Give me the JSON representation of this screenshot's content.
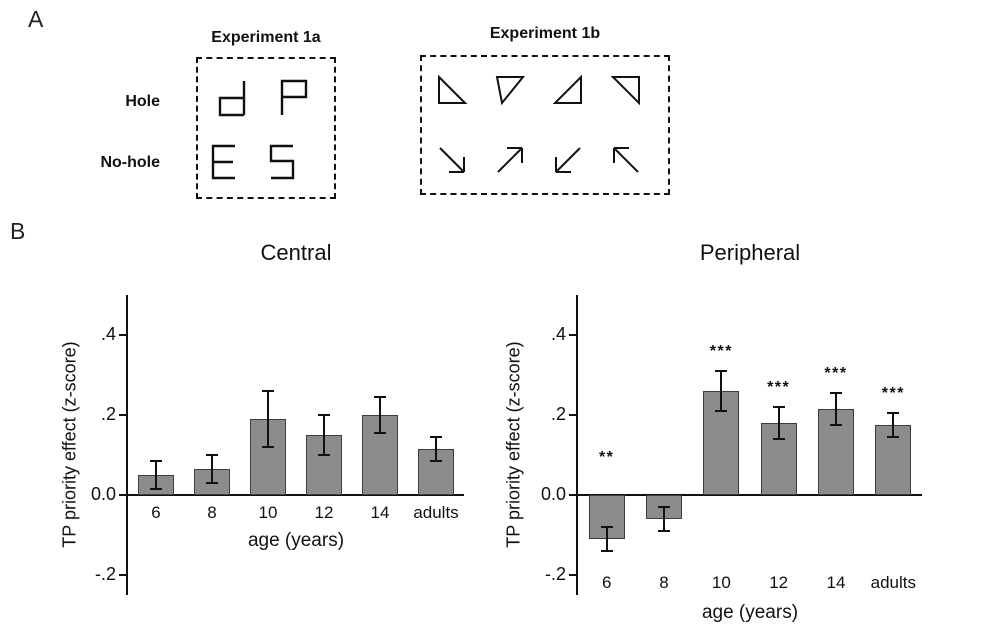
{
  "panel_a": {
    "label": "A",
    "row_labels": [
      "Hole",
      "No-hole"
    ],
    "experiments": [
      {
        "title": "Experiment 1a",
        "hole_shapes": [
          "square-d-glyph",
          "square-p-glyph"
        ],
        "no_hole_shapes": [
          "square-e-glyph",
          "square-5-glyph"
        ]
      },
      {
        "title": "Experiment 1b",
        "hole_shapes": [
          "right-triangle-hypotenuse-top",
          "right-triangle-point-down",
          "right-triangle-right-angle-bottom-right",
          "right-triangle-right-angle-top-right"
        ],
        "no_hole_shapes": [
          "arrow-down-right",
          "arrow-up-right",
          "arrow-down-left",
          "arrow-up-left"
        ]
      }
    ]
  },
  "panel_b": {
    "label": "B"
  },
  "chart_data": [
    {
      "type": "bar",
      "title": "Central",
      "xlabel": "age (years)",
      "ylabel": "TP priority effect (z-score)",
      "categories": [
        "6",
        "8",
        "10",
        "12",
        "14",
        "adults"
      ],
      "values": [
        0.05,
        0.065,
        0.19,
        0.15,
        0.2,
        0.115
      ],
      "errors": [
        0.035,
        0.035,
        0.07,
        0.05,
        0.045,
        0.03
      ],
      "significance": [
        "",
        "",
        "",
        "",
        "",
        ""
      ],
      "yticks": [
        0.4,
        0.2,
        0,
        -0.2
      ],
      "ytick_labels": [
        ".4",
        ".2",
        "0.0",
        "-.2"
      ],
      "ylim": [
        -0.25,
        0.5
      ],
      "grid": false,
      "legend": "none",
      "bar_color": "#8c8c8c",
      "bar_border_color": "#3b3b3b",
      "xtick_position": "below_axis"
    },
    {
      "type": "bar",
      "title": "Peripheral",
      "xlabel": "age (years)",
      "ylabel": "TP priority effect (z-score)",
      "categories": [
        "6",
        "8",
        "10",
        "12",
        "14",
        "adults"
      ],
      "values": [
        -0.11,
        -0.06,
        0.26,
        0.18,
        0.215,
        0.175
      ],
      "errors": [
        0.03,
        0.03,
        0.05,
        0.04,
        0.04,
        0.03
      ],
      "significance": [
        "**",
        "",
        "***",
        "***",
        "***",
        "***"
      ],
      "yticks": [
        0.4,
        0.2,
        0,
        -0.2
      ],
      "ytick_labels": [
        ".4",
        ".2",
        "0.0",
        "-.2"
      ],
      "ylim": [
        -0.25,
        0.5
      ],
      "grid": false,
      "legend": "none",
      "bar_color": "#8c8c8c",
      "bar_border_color": "#3b3b3b",
      "xtick_position": "below_plot"
    }
  ]
}
